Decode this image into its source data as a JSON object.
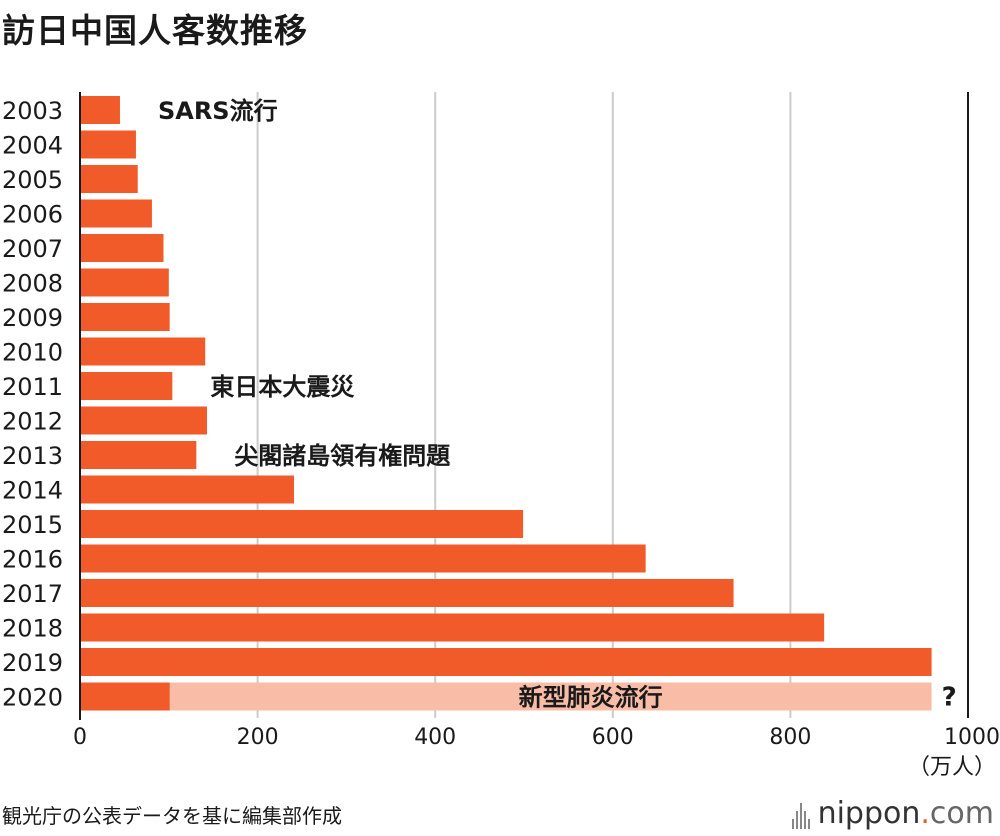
{
  "title": "訪日中国人客数推移",
  "source": "観光庁の公表データを基に編集部作成",
  "logo": {
    "name": "nippon",
    "dot": ".",
    "suffix": "com"
  },
  "chart_data": {
    "type": "bar",
    "orientation": "horizontal",
    "categories": [
      "2003",
      "2004",
      "2005",
      "2006",
      "2007",
      "2008",
      "2009",
      "2010",
      "2011",
      "2012",
      "2013",
      "2014",
      "2015",
      "2016",
      "2017",
      "2018",
      "2019",
      "2020"
    ],
    "values": [
      45,
      63,
      65,
      81,
      94,
      100,
      101,
      141,
      104,
      143,
      131,
      241,
      499,
      637,
      736,
      838,
      959,
      101
    ],
    "projection": {
      "category": "2020",
      "value": 959,
      "label": "新型肺炎流行",
      "marker": "?"
    },
    "annotations": [
      {
        "category": "2003",
        "text": "SARS流行"
      },
      {
        "category": "2011",
        "text": "東日本大震災"
      },
      {
        "category": "2013",
        "text": "尖閣諸島領有権問題"
      }
    ],
    "xlim": [
      0,
      1000
    ],
    "xticks": [
      0,
      200,
      400,
      600,
      800,
      1000
    ],
    "unit": "（万人）",
    "grid": true,
    "colors": {
      "bar": "#f15a29",
      "projection": "#f9bca6",
      "grid": "#cccccc"
    }
  }
}
